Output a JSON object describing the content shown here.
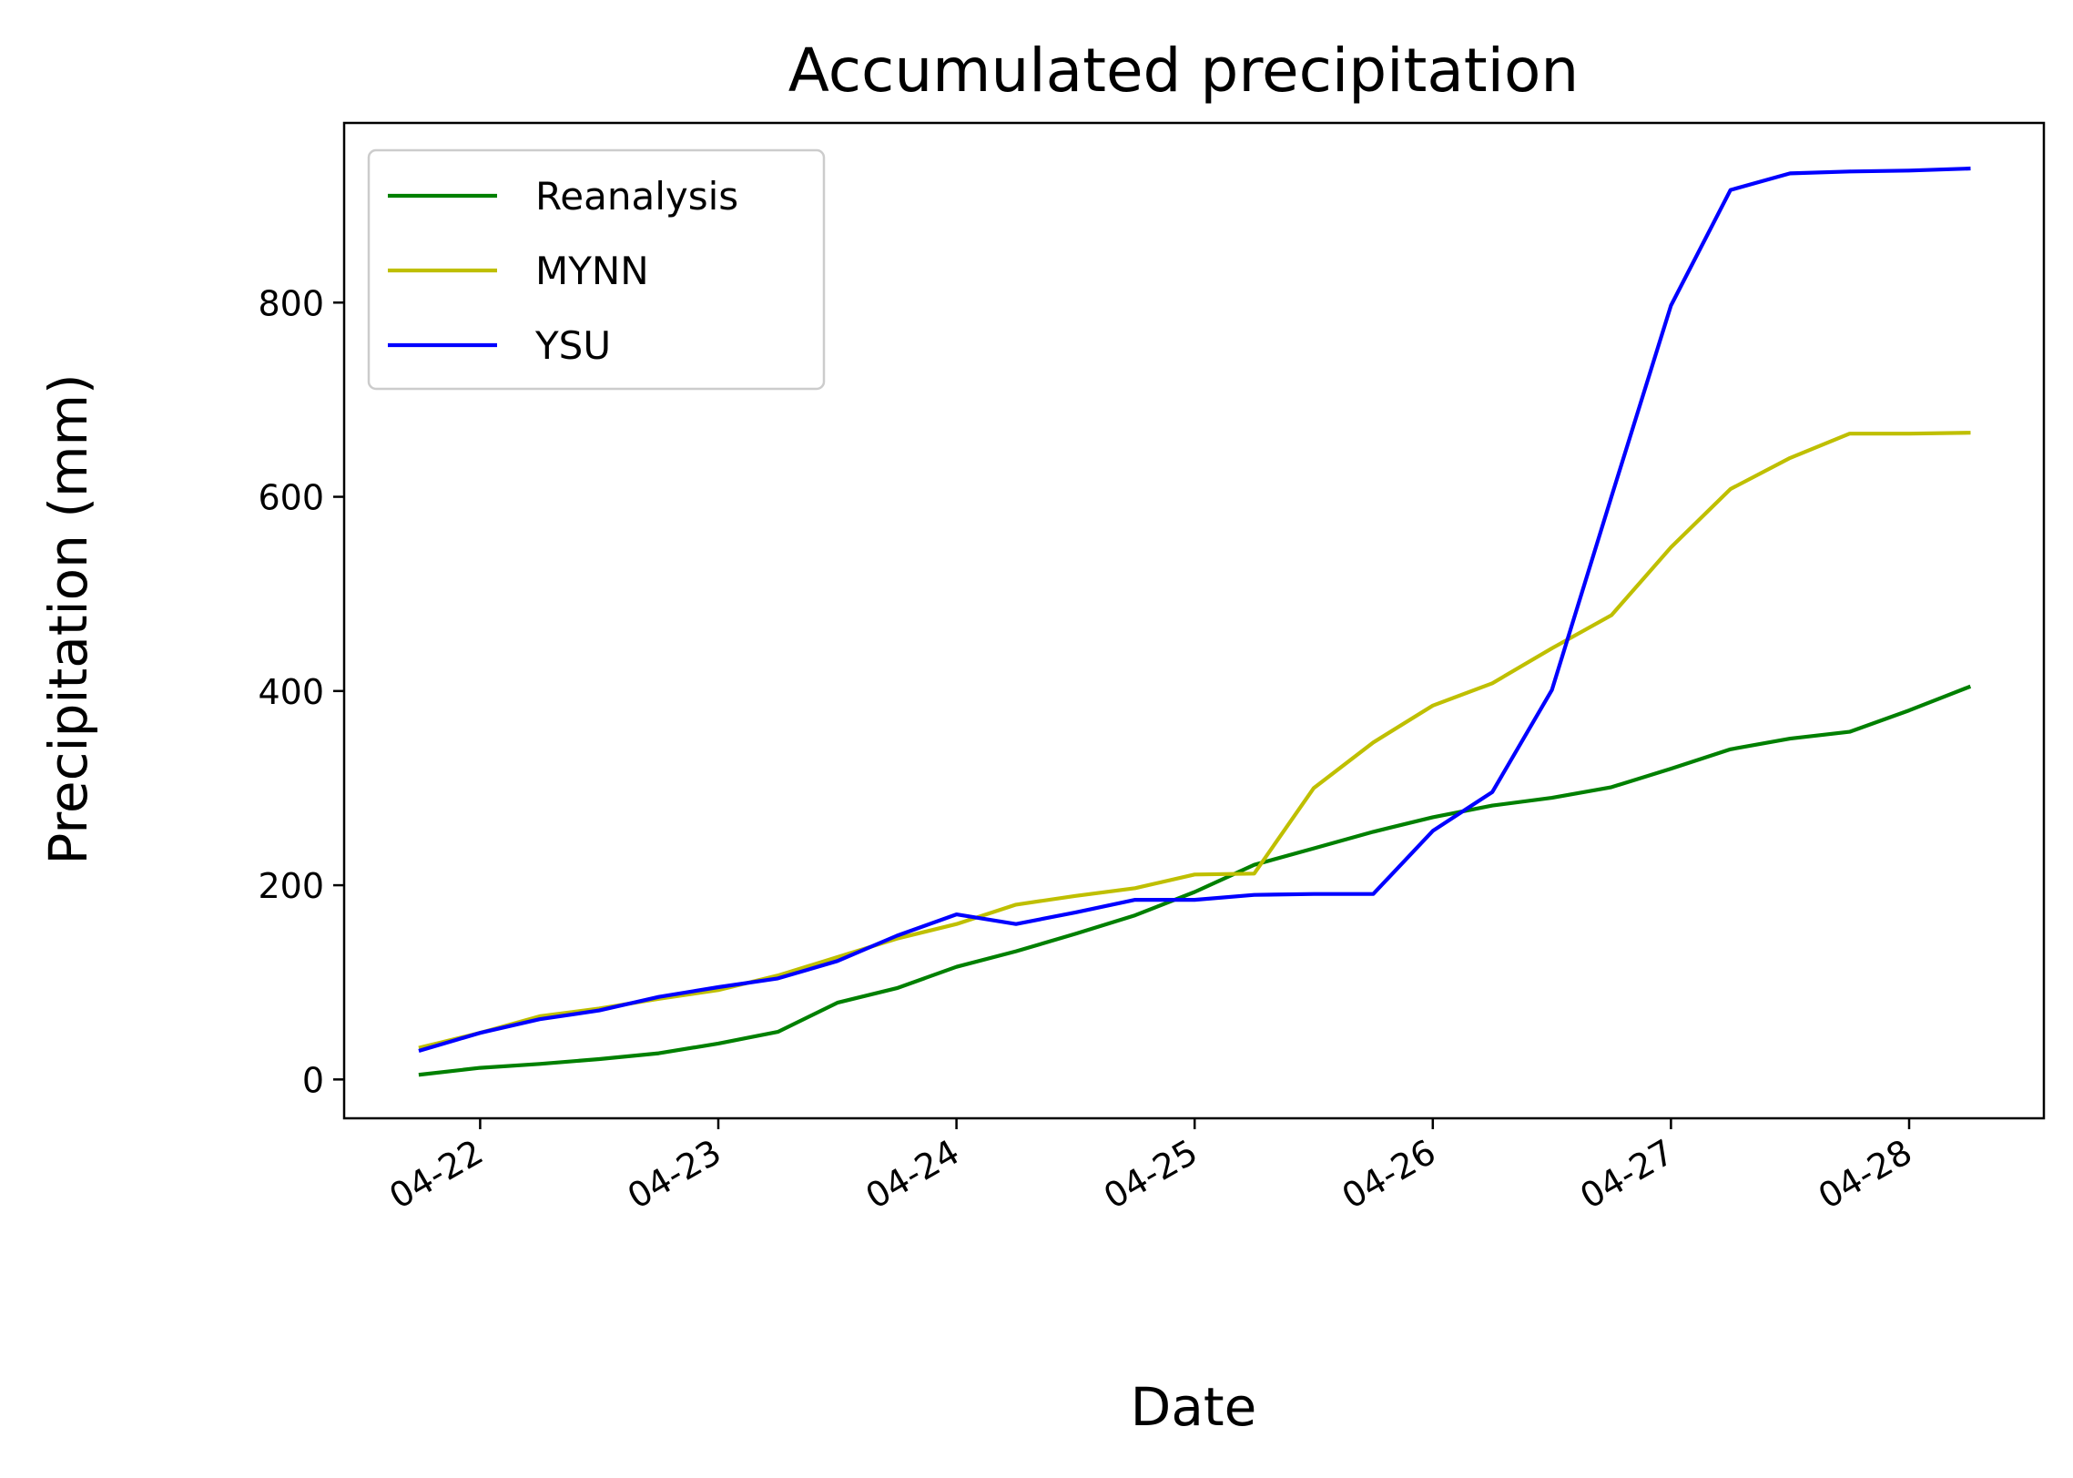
{
  "chart_data": {
    "type": "line",
    "title": "Accumulated precipitation",
    "xlabel": "Date",
    "ylabel": "Precipitation (mm)",
    "x": [
      "04-21 18:00",
      "04-22 00:00",
      "04-22 06:00",
      "04-22 12:00",
      "04-22 18:00",
      "04-23 00:00",
      "04-23 06:00",
      "04-23 12:00",
      "04-23 18:00",
      "04-24 00:00",
      "04-24 06:00",
      "04-24 12:00",
      "04-24 18:00",
      "04-25 00:00",
      "04-25 06:00",
      "04-25 12:00",
      "04-25 18:00",
      "04-26 00:00",
      "04-26 06:00",
      "04-26 12:00",
      "04-26 18:00",
      "04-27 00:00",
      "04-27 06:00",
      "04-27 12:00",
      "04-27 18:00",
      "04-28 00:00",
      "04-28 06:00"
    ],
    "xticks": [
      "04-22",
      "04-23",
      "04-24",
      "04-25",
      "04-26",
      "04-27",
      "04-28"
    ],
    "yticks": [
      0,
      200,
      400,
      600,
      800
    ],
    "ylim": [
      -40,
      985
    ],
    "grid": false,
    "legend_position": "top-left",
    "series": [
      {
        "name": "Reanalysis",
        "color": "#008000",
        "values": [
          5,
          12,
          16,
          21,
          27,
          37,
          49,
          79,
          94,
          116,
          132,
          150,
          169,
          193,
          221,
          238,
          255,
          270,
          282,
          290,
          301,
          320,
          340,
          351,
          358,
          380,
          404
        ]
      },
      {
        "name": "MYNN",
        "color": "#bfbf00",
        "values": [
          33,
          48,
          65,
          73,
          83,
          92,
          107,
          126,
          145,
          160,
          180,
          189,
          197,
          211,
          212,
          300,
          347,
          385,
          408,
          444,
          478,
          548,
          608,
          640,
          665,
          665,
          666
        ]
      },
      {
        "name": "YSU",
        "color": "#0000ff",
        "values": [
          30,
          48,
          62,
          71,
          85,
          95,
          104,
          122,
          148,
          170,
          160,
          172,
          185,
          185,
          190,
          191,
          191,
          256,
          296,
          401,
          600,
          797,
          916,
          933,
          935,
          936,
          938
        ]
      }
    ]
  }
}
